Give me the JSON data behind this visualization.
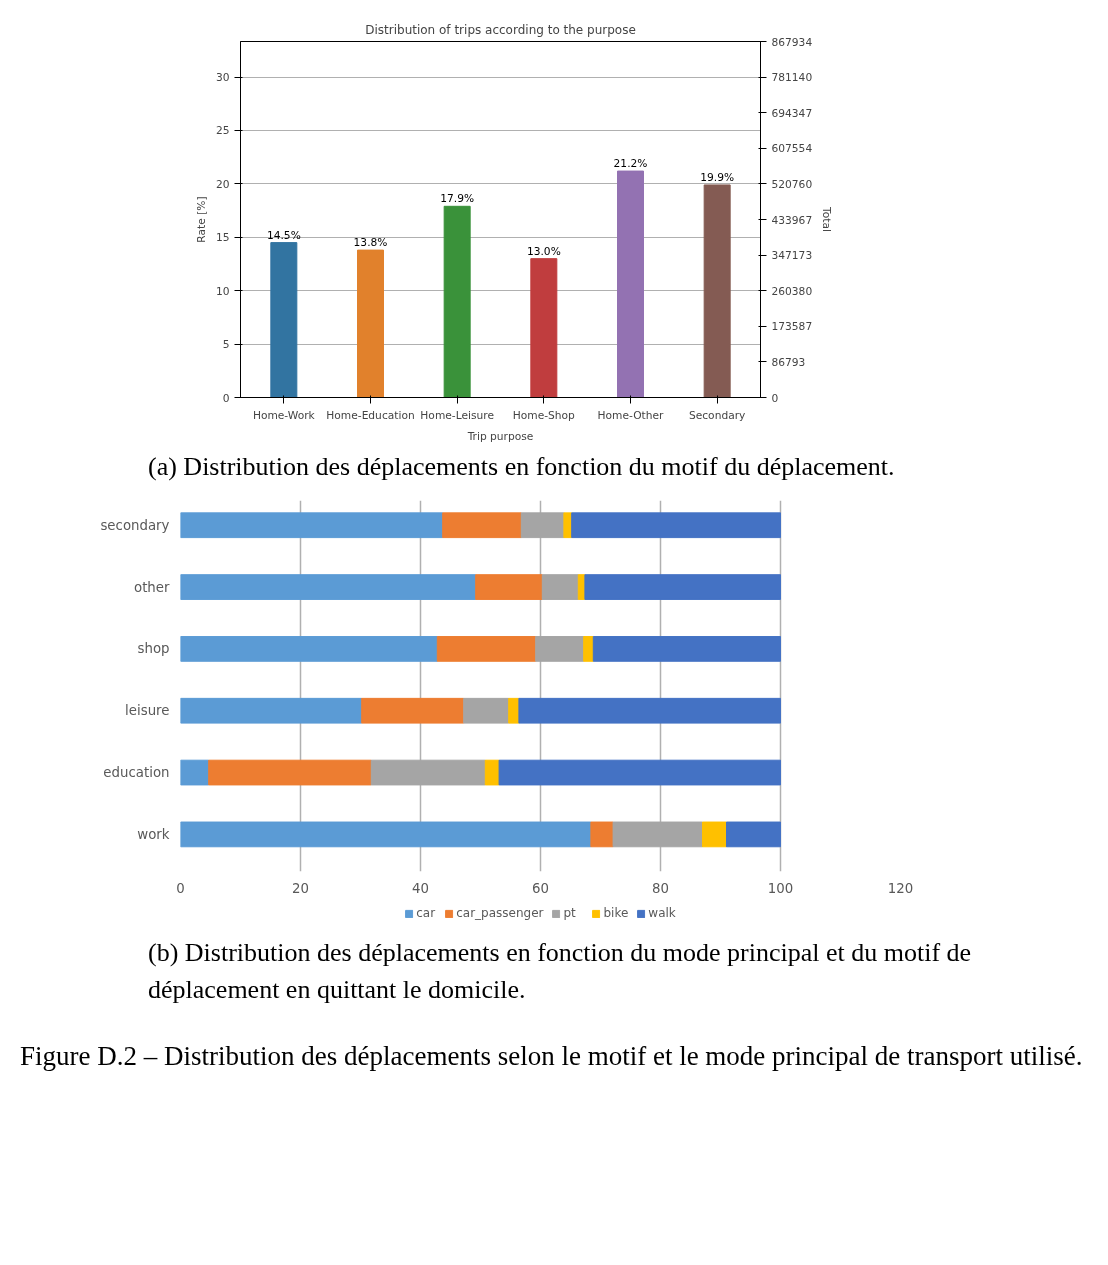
{
  "chart_data": [
    {
      "type": "bar",
      "title": "Distribution of trips according to the purpose",
      "xlabel": "Trip purpose",
      "ylabel": "Rate [%]",
      "y2label": "Total",
      "categories": [
        "Home-Work",
        "Home-Education",
        "Home-Leisure",
        "Home-Shop",
        "Home-Other",
        "Secondary"
      ],
      "values": [
        14.5,
        13.8,
        17.9,
        13.0,
        21.2,
        19.9
      ],
      "colors": [
        "#3274a1",
        "#e1812c",
        "#3a923a",
        "#c03d3e",
        "#9372b2",
        "#845b53"
      ],
      "value_labels": [
        "14.5%",
        "13.8%",
        "17.9%",
        "13.0%",
        "21.2%",
        "19.9%"
      ],
      "ylim": [
        0,
        33.33
      ],
      "yticks": [
        0,
        5,
        10,
        15,
        20,
        25,
        30
      ],
      "y2lim": [
        0,
        867934
      ],
      "y2ticks": [
        0,
        86793,
        173587,
        260380,
        347173,
        433967,
        520760,
        607554,
        694347,
        781140,
        867934
      ],
      "grid": "y",
      "legend": false,
      "annotations": [
        "(a) Distribution des déplacements en fonction du motif du déplacement."
      ]
    },
    {
      "type": "bar",
      "orientation": "horizontal",
      "stacked": true,
      "categories": [
        "secondary",
        "other",
        "shop",
        "leisure",
        "education",
        "work"
      ],
      "series": [
        {
          "name": "car",
          "color": "#5b9bd5",
          "values": [
            43.7,
            49.2,
            42.8,
            30.2,
            4.7,
            68.4
          ]
        },
        {
          "name": "car_passenger",
          "color": "#ed7d31",
          "values": [
            13.1,
            11.1,
            16.4,
            17.0,
            27.1,
            3.7
          ]
        },
        {
          "name": "pt",
          "color": "#a5a5a5",
          "values": [
            7.1,
            6.0,
            8.0,
            7.5,
            19.0,
            14.9
          ]
        },
        {
          "name": "bike",
          "color": "#ffc000",
          "values": [
            1.3,
            1.1,
            1.6,
            1.7,
            2.3,
            4.0
          ]
        },
        {
          "name": "walk",
          "color": "#4472c4",
          "values": [
            34.8,
            32.6,
            31.2,
            43.6,
            46.9,
            9.0
          ]
        }
      ],
      "xlim": [
        0,
        120
      ],
      "xticks": [
        0,
        20,
        40,
        60,
        80,
        100,
        120
      ],
      "grid": "x",
      "legend": "bottom",
      "annotations": [
        "(b) Distribution des déplacements en fonction du mode principal et du motif de déplacement en quittant le domicile.",
        "Figure D.2 – Distribution des déplacements selon le motif et le mode principal de transport utilisé."
      ]
    }
  ]
}
